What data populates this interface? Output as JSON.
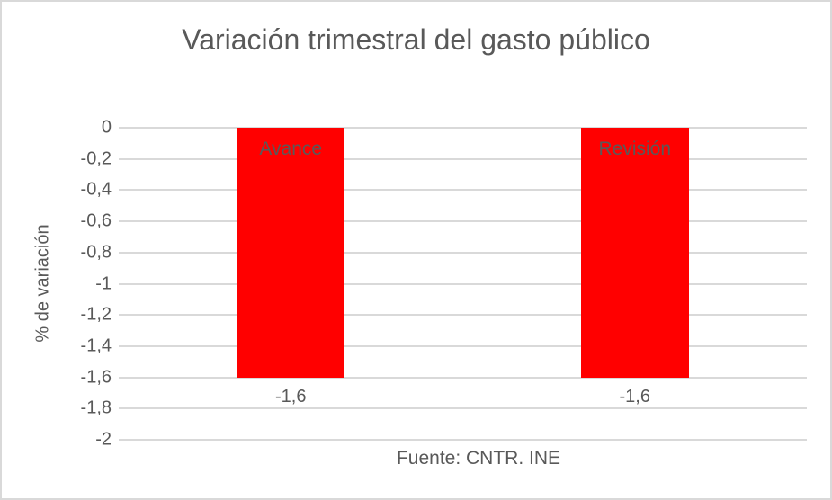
{
  "chart": {
    "title": "Variación trimestral del gasto público",
    "ylabel": "% de variación",
    "source": "Fuente: CNTR. INE"
  },
  "chart_data": {
    "type": "bar",
    "title": "Variación trimestral del gasto público",
    "categories": [
      "Avance",
      "Revisión"
    ],
    "values": [
      -1.6,
      -1.6
    ],
    "value_labels": [
      "-1,6",
      "-1,6"
    ],
    "xlabel": "",
    "ylabel": "% de variación",
    "ylim": [
      -2,
      0
    ],
    "yticks": [
      0,
      -0.2,
      -0.4,
      -0.6,
      -0.8,
      -1,
      -1.2,
      -1.4,
      -1.6,
      -1.8,
      -2
    ],
    "ytick_labels": [
      "0",
      "-0,2",
      "-0,4",
      "-0,6",
      "-0,8",
      "-1",
      "-1,2",
      "-1,4",
      "-1,6",
      "-1,8",
      "-2"
    ],
    "grid": true,
    "legend": false,
    "bar_color": "#ff0000",
    "text_color": "#595959",
    "gridline_color": "#d9d9d9",
    "source": "Fuente: CNTR. INE"
  }
}
